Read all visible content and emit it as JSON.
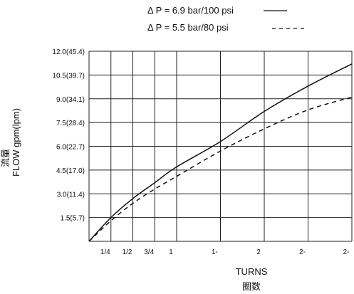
{
  "chart_data": {
    "type": "line",
    "legend": [
      {
        "label": "Δ P = 6.9 bar/100 psi",
        "style": "solid"
      },
      {
        "label": "Δ P = 5.5 bar/80 psi",
        "style": "dashed"
      }
    ],
    "xlabel": "TURNS",
    "xlabel_cn": "圈数",
    "ylabel": "FLOW gpm(lpm)",
    "ylabel_cn": "流量",
    "x_ticks": [
      {
        "value": 0.25,
        "label": "1/4"
      },
      {
        "value": 0.5,
        "label": "1/2"
      },
      {
        "value": 0.75,
        "label": "3/4"
      },
      {
        "value": 1.0,
        "label": "1"
      },
      {
        "value": 1.5,
        "label": "1-"
      },
      {
        "value": 2.0,
        "label": "2"
      },
      {
        "value": 2.5,
        "label": "2-"
      },
      {
        "value": 3.0,
        "label": "2-"
      }
    ],
    "y_ticks": [
      {
        "value": 1.5,
        "label": "1.5(5.7)"
      },
      {
        "value": 3.0,
        "label": "3.0(11.4)"
      },
      {
        "value": 4.5,
        "label": "4.5(17.0)"
      },
      {
        "value": 6.0,
        "label": "6.0(22.7)"
      },
      {
        "value": 7.5,
        "label": "7.5(28.4)"
      },
      {
        "value": 9.0,
        "label": "9.0(34.1)"
      },
      {
        "value": 10.5,
        "label": "10.5(39.7)"
      },
      {
        "value": 12.0,
        "label": "12.0(45.4)"
      }
    ],
    "xlim": [
      0,
      3.0
    ],
    "ylim": [
      0,
      12.0
    ],
    "grid": true,
    "legend_position": "top",
    "series": [
      {
        "name": "Δ P = 6.9 bar/100 psi",
        "style": "solid",
        "x": [
          0,
          0.25,
          0.5,
          0.75,
          1.0,
          1.5,
          2.0,
          2.5,
          3.0
        ],
        "y": [
          0,
          1.5,
          2.7,
          3.7,
          4.7,
          6.3,
          8.2,
          9.8,
          11.2
        ]
      },
      {
        "name": "Δ P = 5.5 bar/80 psi",
        "style": "dashed",
        "x": [
          0,
          0.25,
          0.5,
          0.75,
          1.0,
          1.5,
          2.0,
          2.5,
          3.0
        ],
        "y": [
          0,
          1.3,
          2.4,
          3.3,
          4.1,
          5.7,
          7.1,
          8.3,
          9.1
        ]
      }
    ]
  }
}
